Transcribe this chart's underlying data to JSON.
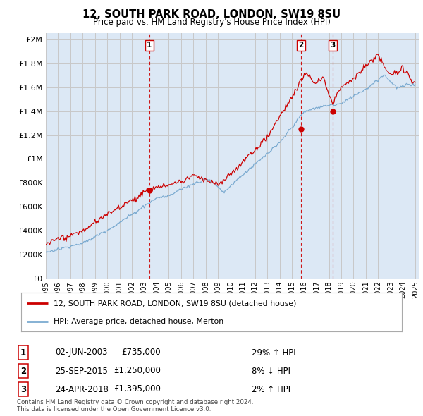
{
  "title": "12, SOUTH PARK ROAD, LONDON, SW19 8SU",
  "subtitle": "Price paid vs. HM Land Registry's House Price Index (HPI)",
  "ytick_values": [
    0,
    200000,
    400000,
    600000,
    800000,
    1000000,
    1200000,
    1400000,
    1600000,
    1800000,
    2000000
  ],
  "ylim": [
    0,
    2050000
  ],
  "xlim_start": 1995.0,
  "xlim_end": 2025.3,
  "sale_dates": [
    2003.42,
    2015.73,
    2018.31
  ],
  "sale_prices": [
    735000,
    1250000,
    1395000
  ],
  "sale_labels": [
    "1",
    "2",
    "3"
  ],
  "legend_red": "12, SOUTH PARK ROAD, LONDON, SW19 8SU (detached house)",
  "legend_blue": "HPI: Average price, detached house, Merton",
  "table_rows": [
    [
      "1",
      "02-JUN-2003",
      "£735,000",
      "29% ↑ HPI"
    ],
    [
      "2",
      "25-SEP-2015",
      "£1,250,000",
      "8% ↓ HPI"
    ],
    [
      "3",
      "24-APR-2018",
      "£1,395,000",
      "2% ↑ HPI"
    ]
  ],
  "footnote": "Contains HM Land Registry data © Crown copyright and database right 2024.\nThis data is licensed under the Open Government Licence v3.0.",
  "red_color": "#cc0000",
  "blue_color": "#7aaad0",
  "grid_color": "#c8c8c8",
  "bg_color": "#dce8f5"
}
